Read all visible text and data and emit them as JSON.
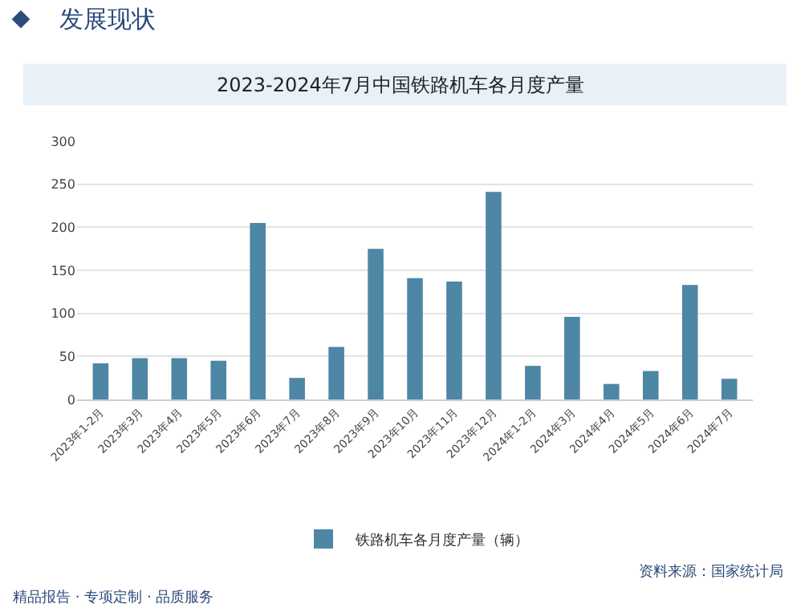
{
  "chart_data": {
    "type": "bar",
    "title": "2023-2024年7月中国铁路机车各月度产量",
    "subtitle": "发展现状",
    "categories": [
      "2023年1-2月",
      "2023年3月",
      "2023年4月",
      "2023年5月",
      "2023年6月",
      "2023年7月",
      "2023年8月",
      "2023年9月",
      "2023年10月",
      "2023年11月",
      "2023年12月",
      "2024年1-2月",
      "2024年3月",
      "2024年4月",
      "2024年5月",
      "2024年6月",
      "2024年7月"
    ],
    "series": [
      {
        "name": "铁路机车各月度产量（辆）",
        "color": "#4e86a5",
        "values": [
          42,
          48,
          48,
          45,
          205,
          25,
          61,
          175,
          141,
          137,
          241,
          39,
          96,
          18,
          33,
          133,
          24
        ]
      }
    ],
    "ylim": [
      0,
      300
    ],
    "yticks": [
      0,
      50,
      100,
      150,
      200,
      250,
      300
    ],
    "grid": "y",
    "legend": "bottom",
    "annotations": [
      "资料来源：国家统计局",
      "精品报告 · 专项定制 · 品质服务"
    ]
  }
}
